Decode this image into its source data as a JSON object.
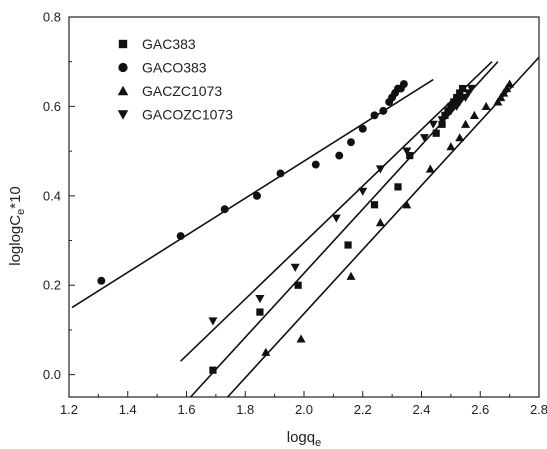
{
  "chart_data": {
    "type": "scatter",
    "xlabel": "logqe",
    "xlabel_parts": [
      "logq",
      "e"
    ],
    "ylabel": "loglogCe*10",
    "ylabel_parts": [
      "loglogC",
      "e",
      "*10"
    ],
    "xlim": [
      1.2,
      2.8
    ],
    "ylim": [
      -0.05,
      0.8
    ],
    "x_ticks": [
      "1.2",
      "1.4",
      "1.6",
      "1.8",
      "2.0",
      "2.2",
      "2.4",
      "2.6",
      "2.8"
    ],
    "y_ticks": [
      "0.0",
      "0.2",
      "0.4",
      "0.6",
      "0.8"
    ],
    "legend_position": "top-left",
    "marker_color": "#111111",
    "series": [
      {
        "name": "GAC383",
        "marker": "square",
        "x": [
          1.69,
          1.85,
          1.98,
          2.15,
          2.24,
          2.32,
          2.36,
          2.45,
          2.47,
          2.48,
          2.49,
          2.5,
          2.51,
          2.52,
          2.53,
          2.54
        ],
        "y": [
          0.01,
          0.14,
          0.2,
          0.29,
          0.38,
          0.42,
          0.49,
          0.54,
          0.56,
          0.58,
          0.59,
          0.6,
          0.61,
          0.62,
          0.63,
          0.64
        ],
        "fit": [
          [
            1.6,
            -0.06
          ],
          [
            2.66,
            0.7
          ]
        ]
      },
      {
        "name": "GACO383",
        "marker": "circle",
        "x": [
          1.31,
          1.58,
          1.73,
          1.84,
          1.92,
          2.04,
          2.12,
          2.16,
          2.2,
          2.24,
          2.27,
          2.29,
          2.3,
          2.31,
          2.32,
          2.33,
          2.34
        ],
        "y": [
          0.21,
          0.31,
          0.37,
          0.4,
          0.45,
          0.47,
          0.49,
          0.52,
          0.55,
          0.58,
          0.59,
          0.61,
          0.62,
          0.63,
          0.64,
          0.64,
          0.65
        ],
        "fit": [
          [
            1.21,
            0.15
          ],
          [
            2.44,
            0.66
          ]
        ]
      },
      {
        "name": "GACZC1073",
        "marker": "triangle-up",
        "x": [
          1.87,
          1.99,
          2.16,
          2.26,
          2.35,
          2.43,
          2.5,
          2.53,
          2.55,
          2.58,
          2.62,
          2.66,
          2.67,
          2.68,
          2.69,
          2.7
        ],
        "y": [
          0.05,
          0.08,
          0.22,
          0.34,
          0.38,
          0.46,
          0.51,
          0.53,
          0.56,
          0.58,
          0.6,
          0.61,
          0.62,
          0.63,
          0.64,
          0.65
        ],
        "fit": [
          [
            1.74,
            -0.05
          ],
          [
            2.8,
            0.71
          ]
        ]
      },
      {
        "name": "GACOZC1073",
        "marker": "triangle-down",
        "x": [
          1.69,
          1.85,
          1.97,
          2.11,
          2.2,
          2.26,
          2.35,
          2.41,
          2.44,
          2.47,
          2.5,
          2.52,
          2.53,
          2.54,
          2.55,
          2.56,
          2.57
        ],
        "y": [
          0.12,
          0.17,
          0.24,
          0.35,
          0.41,
          0.46,
          0.5,
          0.53,
          0.56,
          0.57,
          0.59,
          0.6,
          0.61,
          0.62,
          0.62,
          0.63,
          0.64
        ],
        "fit": [
          [
            1.58,
            0.03
          ],
          [
            2.64,
            0.7
          ]
        ]
      }
    ]
  }
}
